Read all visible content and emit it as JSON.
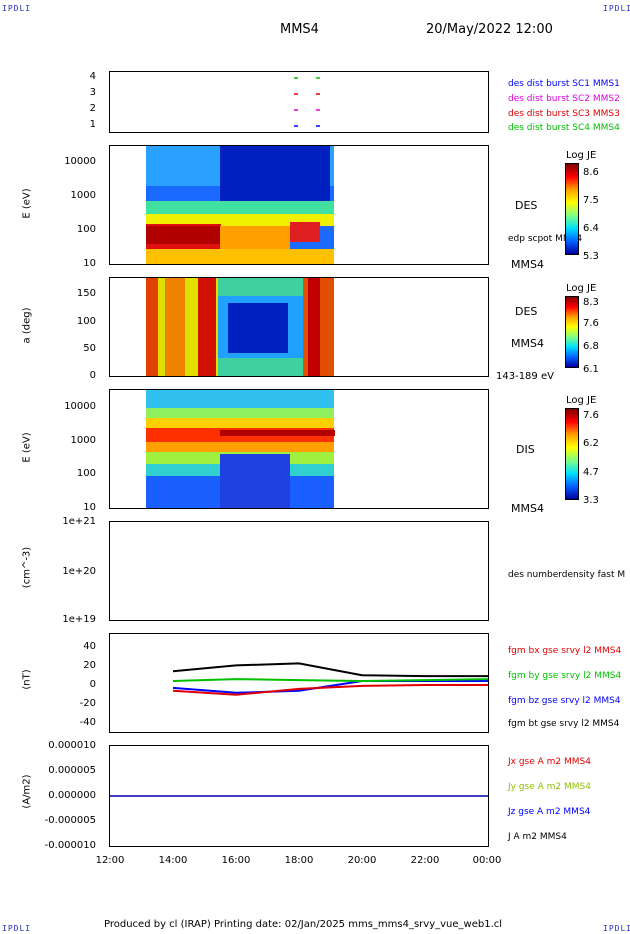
{
  "header": {
    "corner_tl": "IPDLI",
    "corner_tr": "IPDLI",
    "corner_bl": "IPDLI",
    "corner_br": "IPDLI",
    "spacecraft": "MMS4",
    "datetime": "20/May/2022 12:00"
  },
  "footer": {
    "text": "Produced by cl (IRAP)   Printing date: 02/Jan/2025   mms_mms4_srvy_vue_web1.cl"
  },
  "colors": {
    "mms1": "#0000ff",
    "mms2": "#e000e0",
    "mms3": "#e00000",
    "mms4": "#00c000",
    "bx": "#e00000",
    "by": "#00c000",
    "bz": "#0000ff",
    "bt": "#000000"
  },
  "panels": {
    "p1": {
      "yticks": [
        "4",
        "3",
        "2",
        "1"
      ],
      "legend": [
        {
          "label": "des dist burst SC1 MMS1",
          "color": "#0000ff"
        },
        {
          "label": "des dist burst SC2 MMS2",
          "color": "#e000e0"
        },
        {
          "label": "des dist burst SC3 MMS3",
          "color": "#e00000"
        },
        {
          "label": "des dist burst SC4 MMS4",
          "color": "#00c000"
        }
      ]
    },
    "p2": {
      "ylabel": "E (eV)",
      "yticks": [
        "10000",
        "1000",
        "100",
        "10"
      ],
      "side_label": "DES",
      "side_label2": "edp scpot MMS4",
      "side_label3": "MMS4",
      "cb_title": "Log JE",
      "cb_ticks": [
        "8.6",
        "7.5",
        "6.4",
        "5.3"
      ]
    },
    "p3": {
      "ylabel": "a (deg)",
      "yticks": [
        "150",
        "100",
        "50",
        "0"
      ],
      "side_label": "DES",
      "side_label2": "MMS4",
      "side_label3": "143-189 eV",
      "cb_title": "Log JE",
      "cb_ticks": [
        "8.3",
        "7.6",
        "6.8",
        "6.1"
      ]
    },
    "p4": {
      "ylabel": "E (eV)",
      "yticks": [
        "10000",
        "1000",
        "100",
        "10"
      ],
      "side_label": "DIS",
      "side_label2": "MMS4",
      "cb_title": "Log JE",
      "cb_ticks": [
        "7.6",
        "6.2",
        "4.7",
        "3.3"
      ]
    },
    "p5": {
      "ylabel": "(cm^-3)",
      "yticks": [
        "1e+21",
        "1e+20",
        "1e+19"
      ],
      "side_label": "des numberdensity fast M"
    },
    "p6": {
      "ylabel": "(nT)",
      "yticks": [
        "40",
        "20",
        "0",
        "-20",
        "-40"
      ],
      "legend": [
        {
          "label": "fgm bx gse srvy l2 MMS4",
          "color": "#e00000"
        },
        {
          "label": "fgm by gse srvy l2 MMS4",
          "color": "#00c000"
        },
        {
          "label": "fgm bz gse srvy l2 MMS4",
          "color": "#0000ff"
        },
        {
          "label": "fgm bt gse srvy l2 MMS4",
          "color": "#000000"
        }
      ]
    },
    "p7": {
      "ylabel": "(A/m2)",
      "yticks": [
        "0.000010",
        "0.000005",
        "0.000000",
        "-0.000005",
        "-0.000010"
      ],
      "legend": [
        {
          "label": "Jx gse A m2 MMS4",
          "color": "#e00000"
        },
        {
          "label": "Jy gse A m2 MMS4",
          "color": "#90c000"
        },
        {
          "label": "Jz gse A m2 MMS4",
          "color": "#0000ff"
        },
        {
          "label": "J A m2 MMS4",
          "color": "#000000"
        }
      ]
    }
  },
  "xaxis": {
    "ticks": [
      "12:00",
      "14:00",
      "16:00",
      "18:00",
      "20:00",
      "22:00",
      "00:00"
    ]
  },
  "chart_data": {
    "type": "line",
    "title": "MMS4",
    "x": [
      "12:00",
      "14:00",
      "16:00",
      "18:00",
      "20:00",
      "22:00",
      "00:00"
    ],
    "series": [
      {
        "name": "fgm bt gse srvy l2 MMS4",
        "values": [
          null,
          12,
          18,
          20,
          8,
          7,
          7
        ]
      },
      {
        "name": "fgm bx gse srvy l2 MMS4",
        "values": [
          null,
          -8,
          -12,
          -6,
          -3,
          -2,
          -2
        ]
      },
      {
        "name": "fgm by gse srvy l2 MMS4",
        "values": [
          null,
          2,
          4,
          3,
          2,
          3,
          4
        ]
      },
      {
        "name": "fgm bz gse srvy l2 MMS4",
        "values": [
          null,
          -5,
          -10,
          -8,
          2,
          2,
          2
        ]
      }
    ],
    "ylim": [
      -50,
      50
    ]
  }
}
